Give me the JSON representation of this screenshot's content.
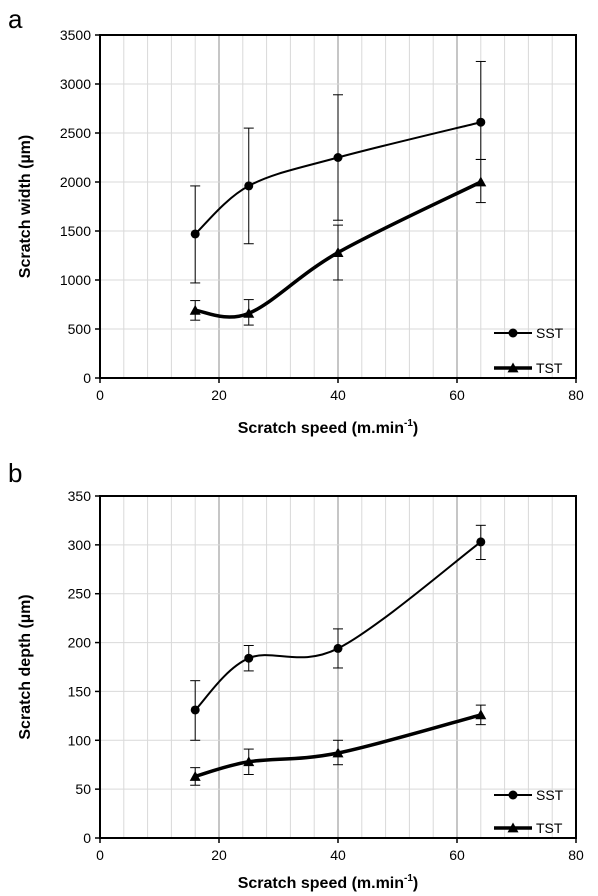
{
  "chart_data": [
    {
      "panel_label": "a",
      "type": "line",
      "xlabel": "Scratch speed (m.min",
      "xlabel_sup": "-1",
      "xlabel_close": ")",
      "ylabel": "Scratch width (µm)",
      "xlim": [
        0,
        80
      ],
      "ylim": [
        0,
        3500
      ],
      "xticks": [
        0,
        20,
        40,
        60,
        80
      ],
      "yticks": [
        0,
        500,
        1000,
        1500,
        2000,
        2500,
        3000,
        3500
      ],
      "x_minor_step": 4,
      "y_minor_step": 500,
      "grid": true,
      "legend_position": "bottom-right",
      "series": [
        {
          "name": "SST",
          "marker": "circle",
          "line_width": 2,
          "x": [
            16,
            25,
            40,
            64
          ],
          "y": [
            1470,
            1960,
            2250,
            2610
          ],
          "err_low": [
            970,
            1370,
            1610,
            2230
          ],
          "err_high": [
            1960,
            2550,
            2890,
            3230
          ]
        },
        {
          "name": "TST",
          "marker": "triangle",
          "line_width": 3.5,
          "x": [
            16,
            25,
            40,
            64
          ],
          "y": [
            690,
            660,
            1280,
            2000
          ],
          "err_low": [
            590,
            540,
            1000,
            1790
          ],
          "err_high": [
            790,
            800,
            1560,
            2230
          ]
        }
      ]
    },
    {
      "panel_label": "b",
      "type": "line",
      "xlabel": "Scratch speed (m.min",
      "xlabel_sup": "-1",
      "xlabel_close": ")",
      "ylabel": "Scratch depth (µm)",
      "xlim": [
        0,
        80
      ],
      "ylim": [
        0,
        350
      ],
      "xticks": [
        0,
        20,
        40,
        60,
        80
      ],
      "yticks": [
        0,
        50,
        100,
        150,
        200,
        250,
        300,
        350
      ],
      "x_minor_step": 4,
      "y_minor_step": 50,
      "grid": true,
      "legend_position": "bottom-right",
      "series": [
        {
          "name": "SST",
          "marker": "circle",
          "line_width": 2,
          "x": [
            16,
            25,
            40,
            64
          ],
          "y": [
            131,
            184,
            194,
            303
          ],
          "err_low": [
            100,
            171,
            174,
            285
          ],
          "err_high": [
            161,
            197,
            214,
            320
          ]
        },
        {
          "name": "TST",
          "marker": "triangle",
          "line_width": 3.5,
          "x": [
            16,
            25,
            40,
            64
          ],
          "y": [
            63,
            78,
            87,
            126
          ],
          "err_low": [
            54,
            65,
            75,
            116
          ],
          "err_high": [
            72,
            91,
            100,
            136
          ]
        }
      ]
    }
  ]
}
